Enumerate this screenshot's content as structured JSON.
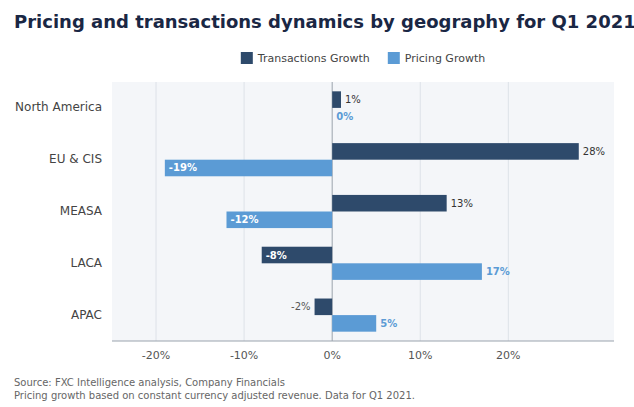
{
  "chart_data": {
    "type": "bar",
    "orientation": "horizontal",
    "title": "Pricing and transactions dynamics by geography for Q1 2021",
    "categories": [
      "North America",
      "EU & CIS",
      "MEASA",
      "LACA",
      "APAC"
    ],
    "series": [
      {
        "name": "Transactions Growth",
        "color": "#2e4a6b",
        "values": [
          1,
          28,
          13,
          -8,
          -2
        ],
        "value_labels": [
          "1%",
          "28%",
          "13%",
          "-8%",
          "-2%"
        ]
      },
      {
        "name": "Pricing Growth",
        "color": "#5b9bd5",
        "values": [
          0,
          -19,
          -12,
          17,
          5
        ],
        "value_labels": [
          "0%",
          "-19%",
          "-12%",
          "17%",
          "5%"
        ]
      }
    ],
    "xlim": [
      -25,
      32
    ],
    "xticks": [
      {
        "value": -20,
        "label": "-20%"
      },
      {
        "value": -10,
        "label": "-10%"
      },
      {
        "value": 0,
        "label": "0%"
      },
      {
        "value": 10,
        "label": "10%"
      },
      {
        "value": 20,
        "label": "20%"
      }
    ],
    "grid": true,
    "legend": "top",
    "data_labels": true,
    "annotations": [
      "Source: FXC Intelligence analysis, Company Financials\nPricing growth based on constant currency adjusted revenue. Data for Q1 2021."
    ]
  }
}
